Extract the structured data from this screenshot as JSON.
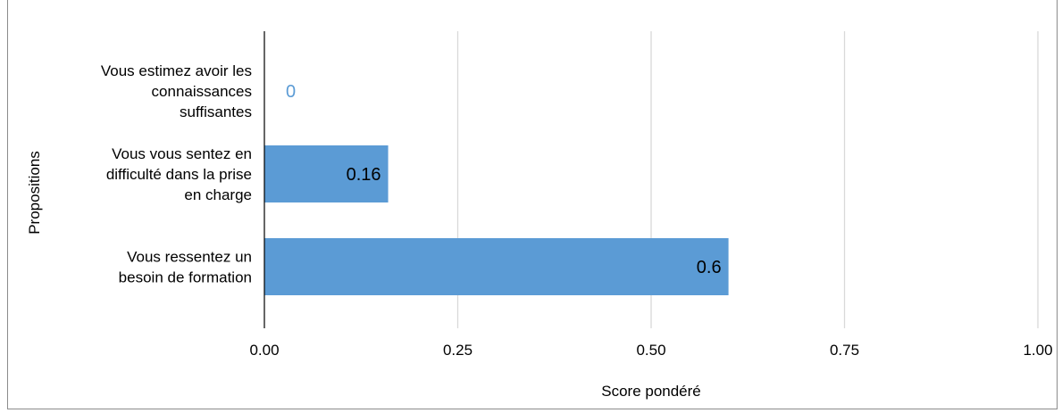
{
  "chart_data": {
    "type": "bar",
    "orientation": "horizontal",
    "title": "",
    "xlabel": "Score pondéré",
    "ylabel": "Propositions",
    "xlim": [
      0,
      1
    ],
    "x_ticks": [
      "0.00",
      "0.25",
      "0.50",
      "0.75",
      "1.00"
    ],
    "grid": true,
    "legend": "none",
    "bar_color": "#5b9bd5",
    "categories": [
      [
        "Vous estimez avoir les",
        "connaissances",
        "suffisantes"
      ],
      [
        "Vous vous sentez en",
        "difficulté dans la prise",
        "en charge"
      ],
      [
        "Vous ressentez un",
        "besoin de formation"
      ]
    ],
    "values": [
      0,
      0.16,
      0.6
    ],
    "data_labels": [
      "0",
      "0.16",
      "0.6"
    ]
  }
}
